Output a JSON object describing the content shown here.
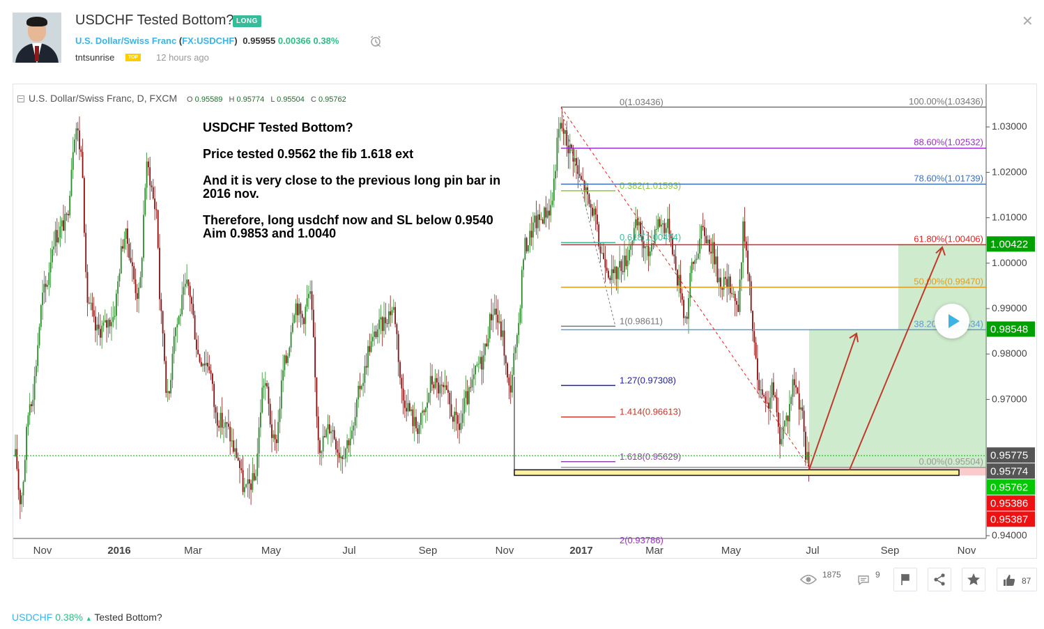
{
  "idea": {
    "title": "USDCHF Tested Bottom?",
    "direction_badge": "LONG",
    "instrument_name": "U.S. Dollar/Swiss Franc",
    "instrument_open": "(",
    "instrument_ticker": "FX:USDCHF",
    "instrument_close": ")",
    "price": "0.95955",
    "change": "0.00366",
    "change_pct": "0.38%",
    "author": "tntsunrise",
    "author_badge": "TOP",
    "published": "12 hours ago"
  },
  "chart_header": {
    "label": "U.S. Dollar/Swiss Franc, D, FXCM",
    "o_label": "O",
    "o": "0.95589",
    "h_label": "H",
    "h": "0.95774",
    "l_label": "L",
    "l": "0.95504",
    "c_label": "C",
    "c": "0.95762"
  },
  "annotation_lines": [
    "USDCHF Tested Bottom?",
    "Price tested 0.9562 the fib 1.618 ext",
    "And it is very close to the previous long pin bar in",
    "2016 nov.",
    "Therefore, long usdchf now and SL below 0.9540",
    "Aim 0.9853 and 1.0040"
  ],
  "chart_data": {
    "type": "candlestick",
    "y_range": [
      0.94,
      1.037
    ],
    "y_ticks": [
      "1.03000",
      "1.02000",
      "1.01000",
      "1.00000",
      "0.99000",
      "0.98000",
      "0.97000",
      "0.94000"
    ],
    "y_tick_values": [
      1.03,
      1.02,
      1.01,
      1.0,
      0.99,
      0.98,
      0.97,
      0.94
    ],
    "x_ticks": [
      "Nov",
      "2016",
      "Mar",
      "May",
      "Jul",
      "Sep",
      "Nov",
      "2017",
      "Mar",
      "May",
      "Jul",
      "Sep",
      "Nov"
    ],
    "x_tick_bold": [
      false,
      true,
      false,
      false,
      false,
      false,
      false,
      true,
      false,
      false,
      false,
      false,
      false
    ],
    "fib_retracement": [
      {
        "label": "0.00%(0.95504)",
        "value": 0.95504,
        "color": "#999999"
      },
      {
        "label": "38.20%(0.98534)",
        "value": 0.98534,
        "color": "#5b9bd5"
      },
      {
        "label": "50.00%(0.99470)",
        "value": 0.9947,
        "color": "#e39b1d"
      },
      {
        "label": "61.80%(1.00406)",
        "value": 1.00406,
        "color": "#e02020"
      },
      {
        "label": "78.60%(1.01739)",
        "value": 1.01739,
        "color": "#3a6fc4"
      },
      {
        "label": "88.60%(1.02532)",
        "value": 1.02532,
        "color": "#9b30c8"
      },
      {
        "label": "100.00%(1.03436)",
        "value": 1.03436,
        "color": "#777777"
      }
    ],
    "fib_extension": [
      {
        "label": "0(1.03436)",
        "value": 1.03436,
        "color": "#777777"
      },
      {
        "label": "0.382(1.01593)",
        "value": 1.01593,
        "color": "#8cc63f"
      },
      {
        "label": "0.618(1.00454)",
        "value": 1.00454,
        "color": "#37bc9b"
      },
      {
        "label": "1(0.98611)",
        "value": 0.98611,
        "color": "#777777"
      },
      {
        "label": "1.27(0.97308)",
        "value": 0.97308,
        "color": "#1f1fa0"
      },
      {
        "label": "1.414(0.96613)",
        "value": 0.96613,
        "color": "#c0392b"
      },
      {
        "label": "1.618(0.95629)",
        "value": 0.95629,
        "color": "#8e44ad"
      },
      {
        "label": "2(0.93786)",
        "value": 0.93786,
        "color": "#9b30c8"
      }
    ],
    "position": {
      "entry": 0.95504,
      "target": 1.00422,
      "stop": 0.95386
    },
    "price_labels": [
      {
        "text": "1.00422",
        "value": 1.00422,
        "bg": "#00a000"
      },
      {
        "text": "0.98548",
        "value": 0.98548,
        "bg": "#00a000"
      },
      {
        "text": "0.95775",
        "value": 0.95775,
        "bg": "#555555"
      },
      {
        "text": "0.95774",
        "value": 0.95774,
        "bg": "#555555"
      },
      {
        "text": "0.95762",
        "value": 0.95762,
        "bg": "#00c800"
      },
      {
        "text": "0.95386",
        "value": 0.95386,
        "bg": "#ee1111"
      },
      {
        "text": "0.95387",
        "value": 0.95387,
        "bg": "#ee1111"
      }
    ],
    "candle_colors": {
      "up": "#2a8a2a",
      "down": "#8b0f0f"
    }
  },
  "social": {
    "views": "1875",
    "comments": "9",
    "likes": "87"
  },
  "footer": {
    "symbol": "USDCHF",
    "change": "0.38%",
    "arrow": "▲",
    "text": "Tested Bottom?"
  }
}
